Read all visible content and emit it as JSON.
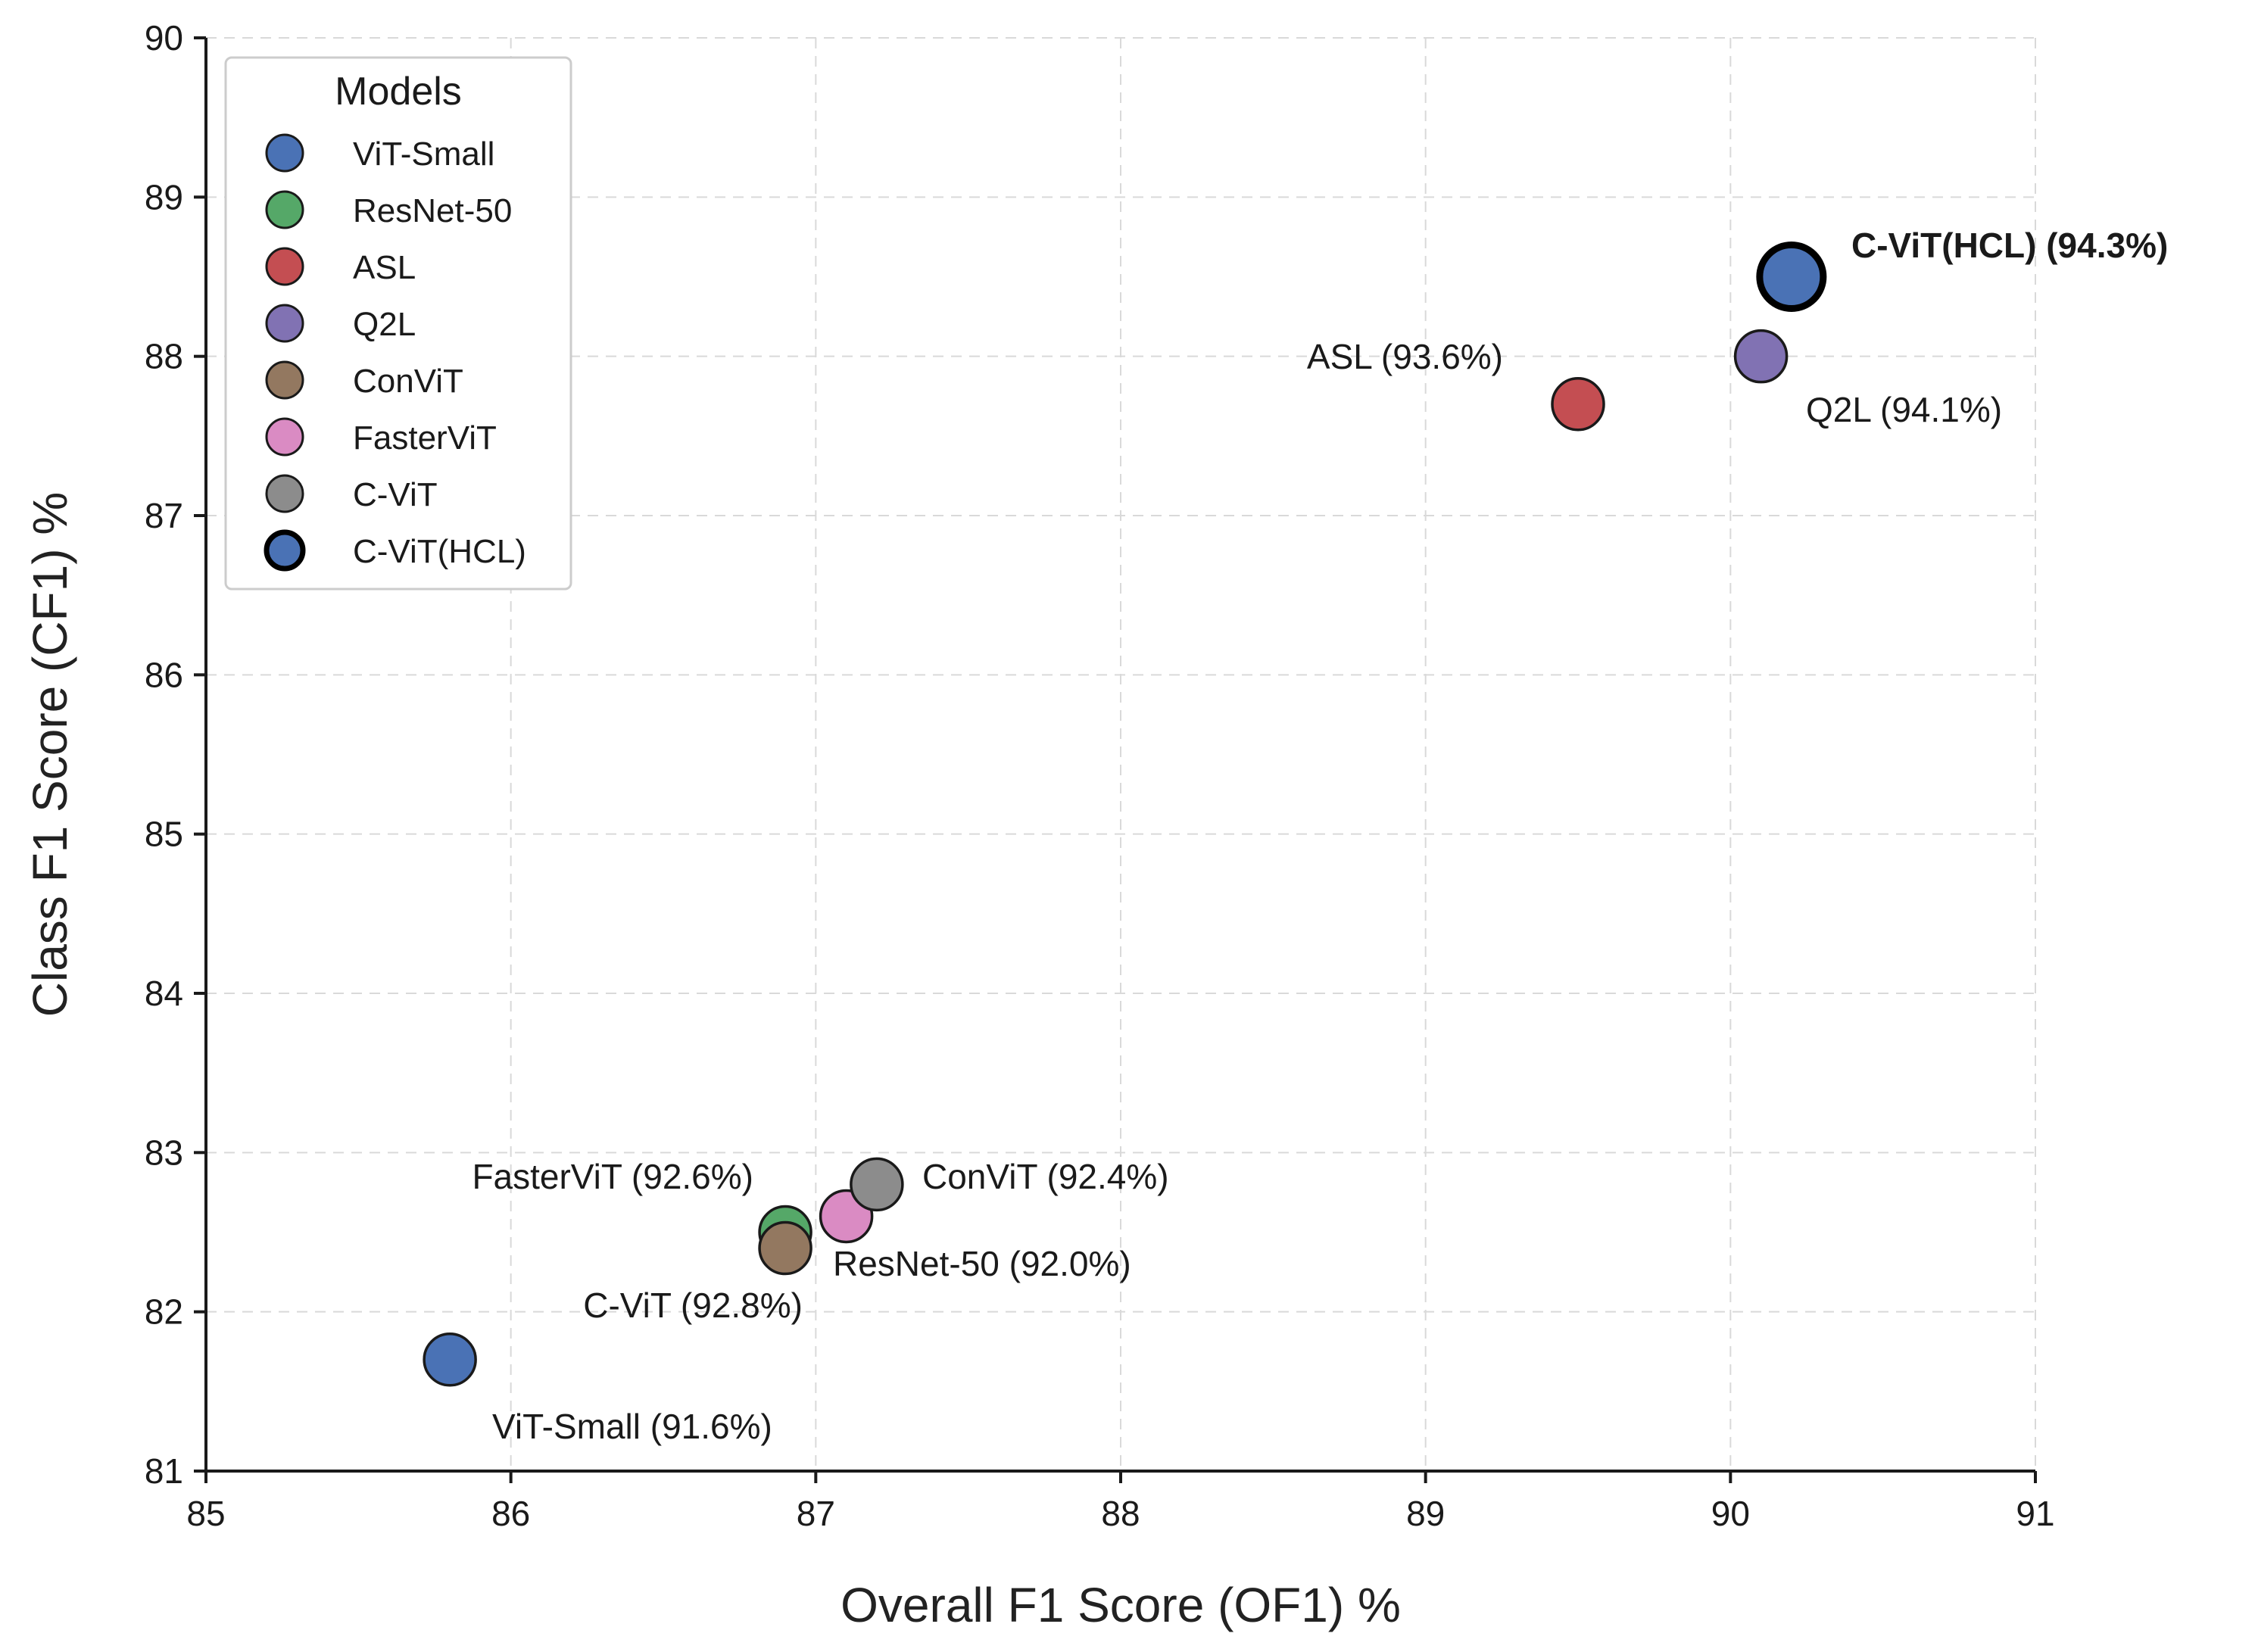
{
  "chart_data": {
    "type": "scatter",
    "title": "",
    "xlabel": "Overall F1 Score (OF1) %",
    "ylabel": "Class F1 Score (CF1) %",
    "xlim": [
      85,
      91
    ],
    "ylim": [
      81,
      90
    ],
    "xticks": [
      "85",
      "86",
      "87",
      "88",
      "89",
      "90",
      "91"
    ],
    "yticks": [
      "81",
      "82",
      "83",
      "84",
      "85",
      "86",
      "87",
      "88",
      "89",
      "90"
    ],
    "grid": true,
    "grid_style": "dashed",
    "legend_title": "Models",
    "legend_position": "upper-left",
    "series": [
      {
        "name": "ViT-Small",
        "x": 85.8,
        "y": 81.7,
        "color": "#4a72b5",
        "label": "ViT-Small (91.6%)",
        "highlight": false,
        "label_anchor": "below-right"
      },
      {
        "name": "ResNet-50",
        "x": 86.9,
        "y": 82.5,
        "color": "#55a868",
        "label": "ResNet-50 (92.0%)",
        "highlight": false,
        "label_anchor": "below-right"
      },
      {
        "name": "ASL",
        "x": 89.5,
        "y": 87.7,
        "color": "#c44e52",
        "label": "ASL (93.6%)",
        "highlight": false,
        "label_anchor": "upper-left"
      },
      {
        "name": "Q2L",
        "x": 90.1,
        "y": 88.0,
        "color": "#8172b3",
        "label": "Q2L (94.1%)",
        "highlight": false,
        "label_anchor": "below-right"
      },
      {
        "name": "ConViT",
        "x": 86.9,
        "y": 82.4,
        "color": "#937860",
        "label": "ConViT (92.4%)",
        "highlight": false,
        "label_anchor": "right"
      },
      {
        "name": "FasterViT",
        "x": 87.1,
        "y": 82.6,
        "color": "#da8bc3",
        "label": "FasterViT (92.6%)",
        "highlight": false,
        "label_anchor": "upper-left"
      },
      {
        "name": "C-ViT",
        "x": 87.2,
        "y": 82.8,
        "color": "#8c8c8c",
        "label": "C-ViT (92.8%)",
        "highlight": false,
        "label_anchor": "below-left"
      },
      {
        "name": "C-ViT(HCL)",
        "x": 90.2,
        "y": 88.5,
        "color": "#4a72b5",
        "label": "C-ViT(HCL) (94.3%)",
        "highlight": true,
        "label_anchor": "upper-right"
      }
    ]
  }
}
